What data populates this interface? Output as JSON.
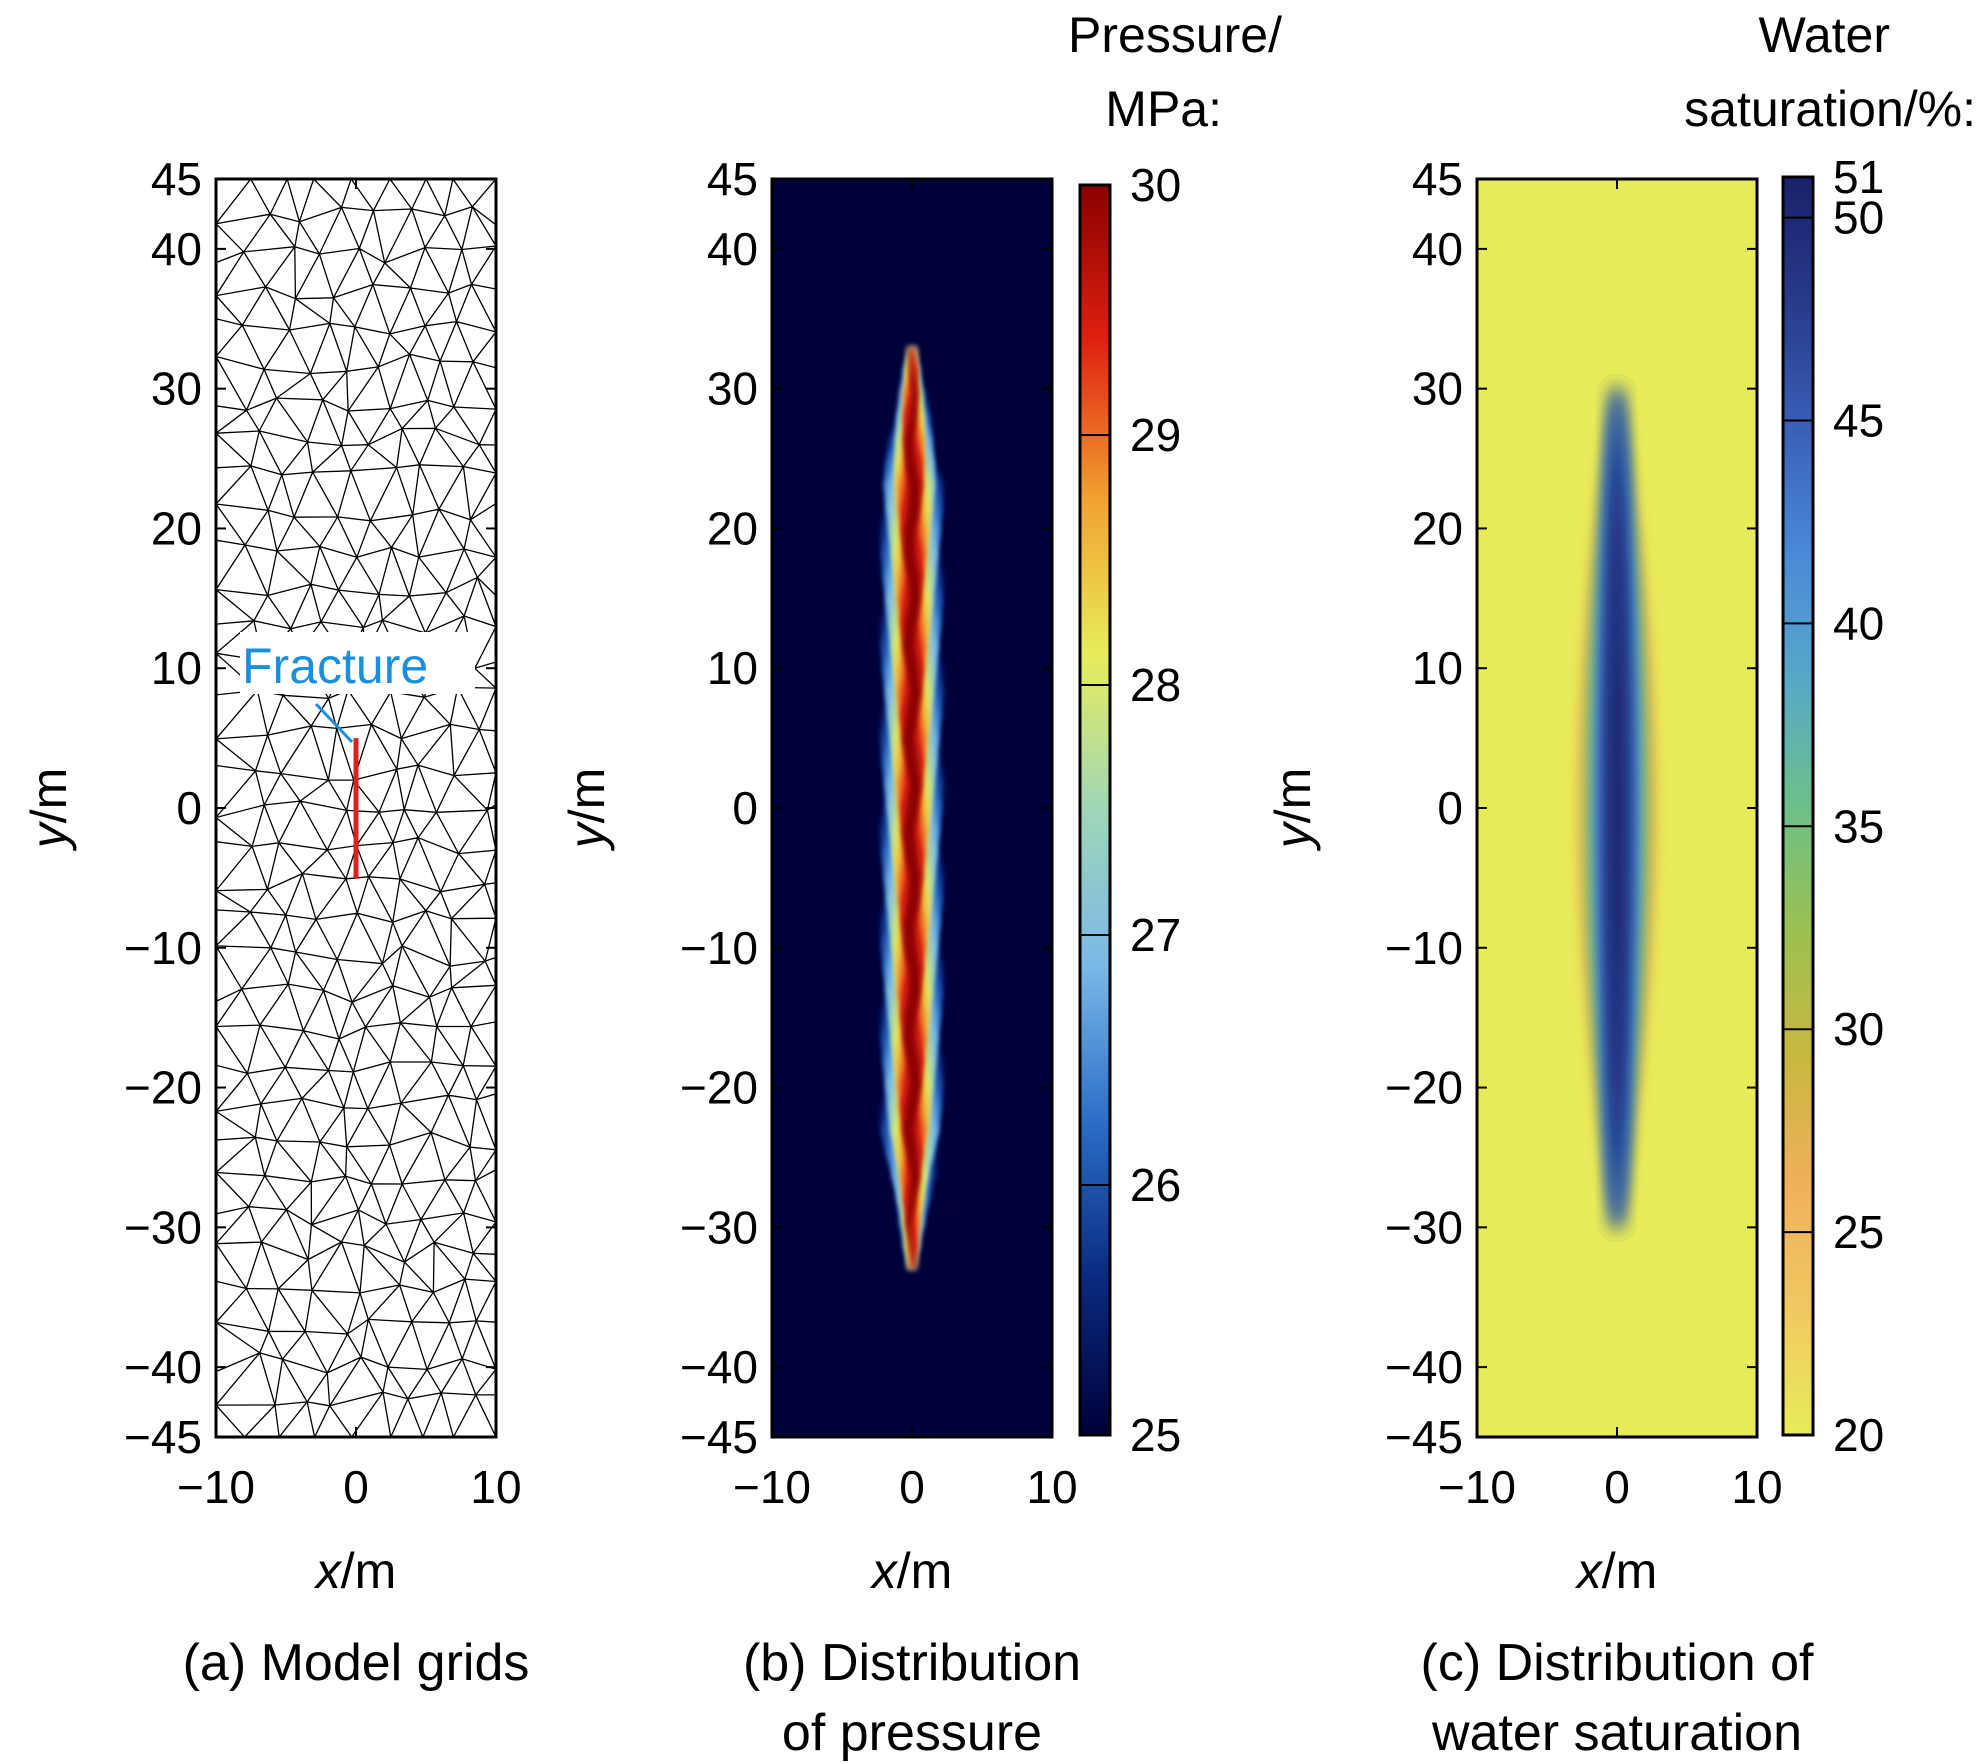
{
  "chart_data": [
    {
      "type": "mesh",
      "caption": "(a) Model grids",
      "xlabel_var": "x",
      "xlabel_unit": "/m",
      "ylabel_var": "y",
      "ylabel_unit": "/m",
      "xlim": [
        -10,
        10
      ],
      "ylim": [
        -45,
        45
      ],
      "xticks": [
        -10,
        0,
        10
      ],
      "xtick_labels": [
        "−10",
        "0",
        "10"
      ],
      "yticks": [
        45,
        40,
        30,
        20,
        10,
        0,
        -10,
        -20,
        -30,
        -40,
        -45
      ],
      "ytick_labels": [
        "45",
        "40",
        "30",
        "20",
        "10",
        "0",
        "−10",
        "−20",
        "−30",
        "−40",
        "−45"
      ],
      "fracture": {
        "label": "Fracture",
        "x": 0,
        "y_from": -5,
        "y_to": 5,
        "color": "#e02020"
      },
      "mesh_color": "#000000"
    },
    {
      "type": "heatmap",
      "caption_line1": "(b) Distribution",
      "caption_line2": "of pressure",
      "xlabel_var": "x",
      "xlabel_unit": "/m",
      "ylabel_var": "y",
      "ylabel_unit": "/m",
      "xlim": [
        -10,
        10
      ],
      "ylim": [
        -45,
        45
      ],
      "xticks": [
        -10,
        0,
        10
      ],
      "xtick_labels": [
        "−10",
        "0",
        "10"
      ],
      "yticks": [
        45,
        40,
        30,
        20,
        10,
        0,
        -10,
        -20,
        -30,
        -40,
        -45
      ],
      "ytick_labels": [
        "45",
        "40",
        "30",
        "20",
        "10",
        "0",
        "−10",
        "−20",
        "−30",
        "−40",
        "−45"
      ],
      "field": {
        "variable": "pressure",
        "background": 25,
        "peak": 30,
        "center_x": 0,
        "y_extent": [
          -33,
          33
        ],
        "half_width_x": 2
      },
      "colorbar": {
        "title_line1": "Pressure/",
        "title_line2": "MPa:",
        "range": [
          25,
          30
        ],
        "ticks": [
          30,
          29,
          28,
          27,
          26,
          25
        ],
        "tick_labels": [
          "30",
          "29",
          "28",
          "27",
          "26",
          "25"
        ],
        "colormap": [
          "#00003a",
          "#0a2a80",
          "#2a6ec8",
          "#7ab8e8",
          "#9fd6b8",
          "#e8ec5a",
          "#f2a030",
          "#e02010",
          "#8a0000"
        ]
      }
    },
    {
      "type": "heatmap",
      "caption_line1": "(c) Distribution of",
      "caption_line2": "water saturation",
      "xlabel_var": "x",
      "xlabel_unit": "/m",
      "ylabel_var": "y",
      "ylabel_unit": "/m",
      "xlim": [
        -10,
        10
      ],
      "ylim": [
        -45,
        45
      ],
      "xticks": [
        -10,
        0,
        10
      ],
      "xtick_labels": [
        "−10",
        "0",
        "10"
      ],
      "yticks": [
        45,
        40,
        30,
        20,
        10,
        0,
        -10,
        -20,
        -30,
        -40,
        -45
      ],
      "ytick_labels": [
        "45",
        "40",
        "30",
        "20",
        "10",
        "0",
        "−10",
        "−20",
        "−30",
        "−40",
        "−45"
      ],
      "field": {
        "variable": "water_saturation",
        "background": 20,
        "peak": 51,
        "center_x": 0,
        "y_extent": [
          -30,
          30
        ],
        "half_width_x": 2.5
      },
      "colorbar": {
        "title_line1": "Water",
        "title_line2": "saturation/%:",
        "range": [
          20,
          51
        ],
        "ticks": [
          51,
          50,
          45,
          40,
          35,
          30,
          25,
          20
        ],
        "tick_labels": [
          "51",
          "50",
          "45",
          "40",
          "35",
          "30",
          "25",
          "20"
        ],
        "colormap": [
          "#e8ec5a",
          "#f0c860",
          "#f0b05a",
          "#c8b840",
          "#9cc050",
          "#6cc08a",
          "#58a8c8",
          "#4a8ad8",
          "#3a60b8",
          "#283a8a",
          "#18226a"
        ]
      }
    }
  ]
}
